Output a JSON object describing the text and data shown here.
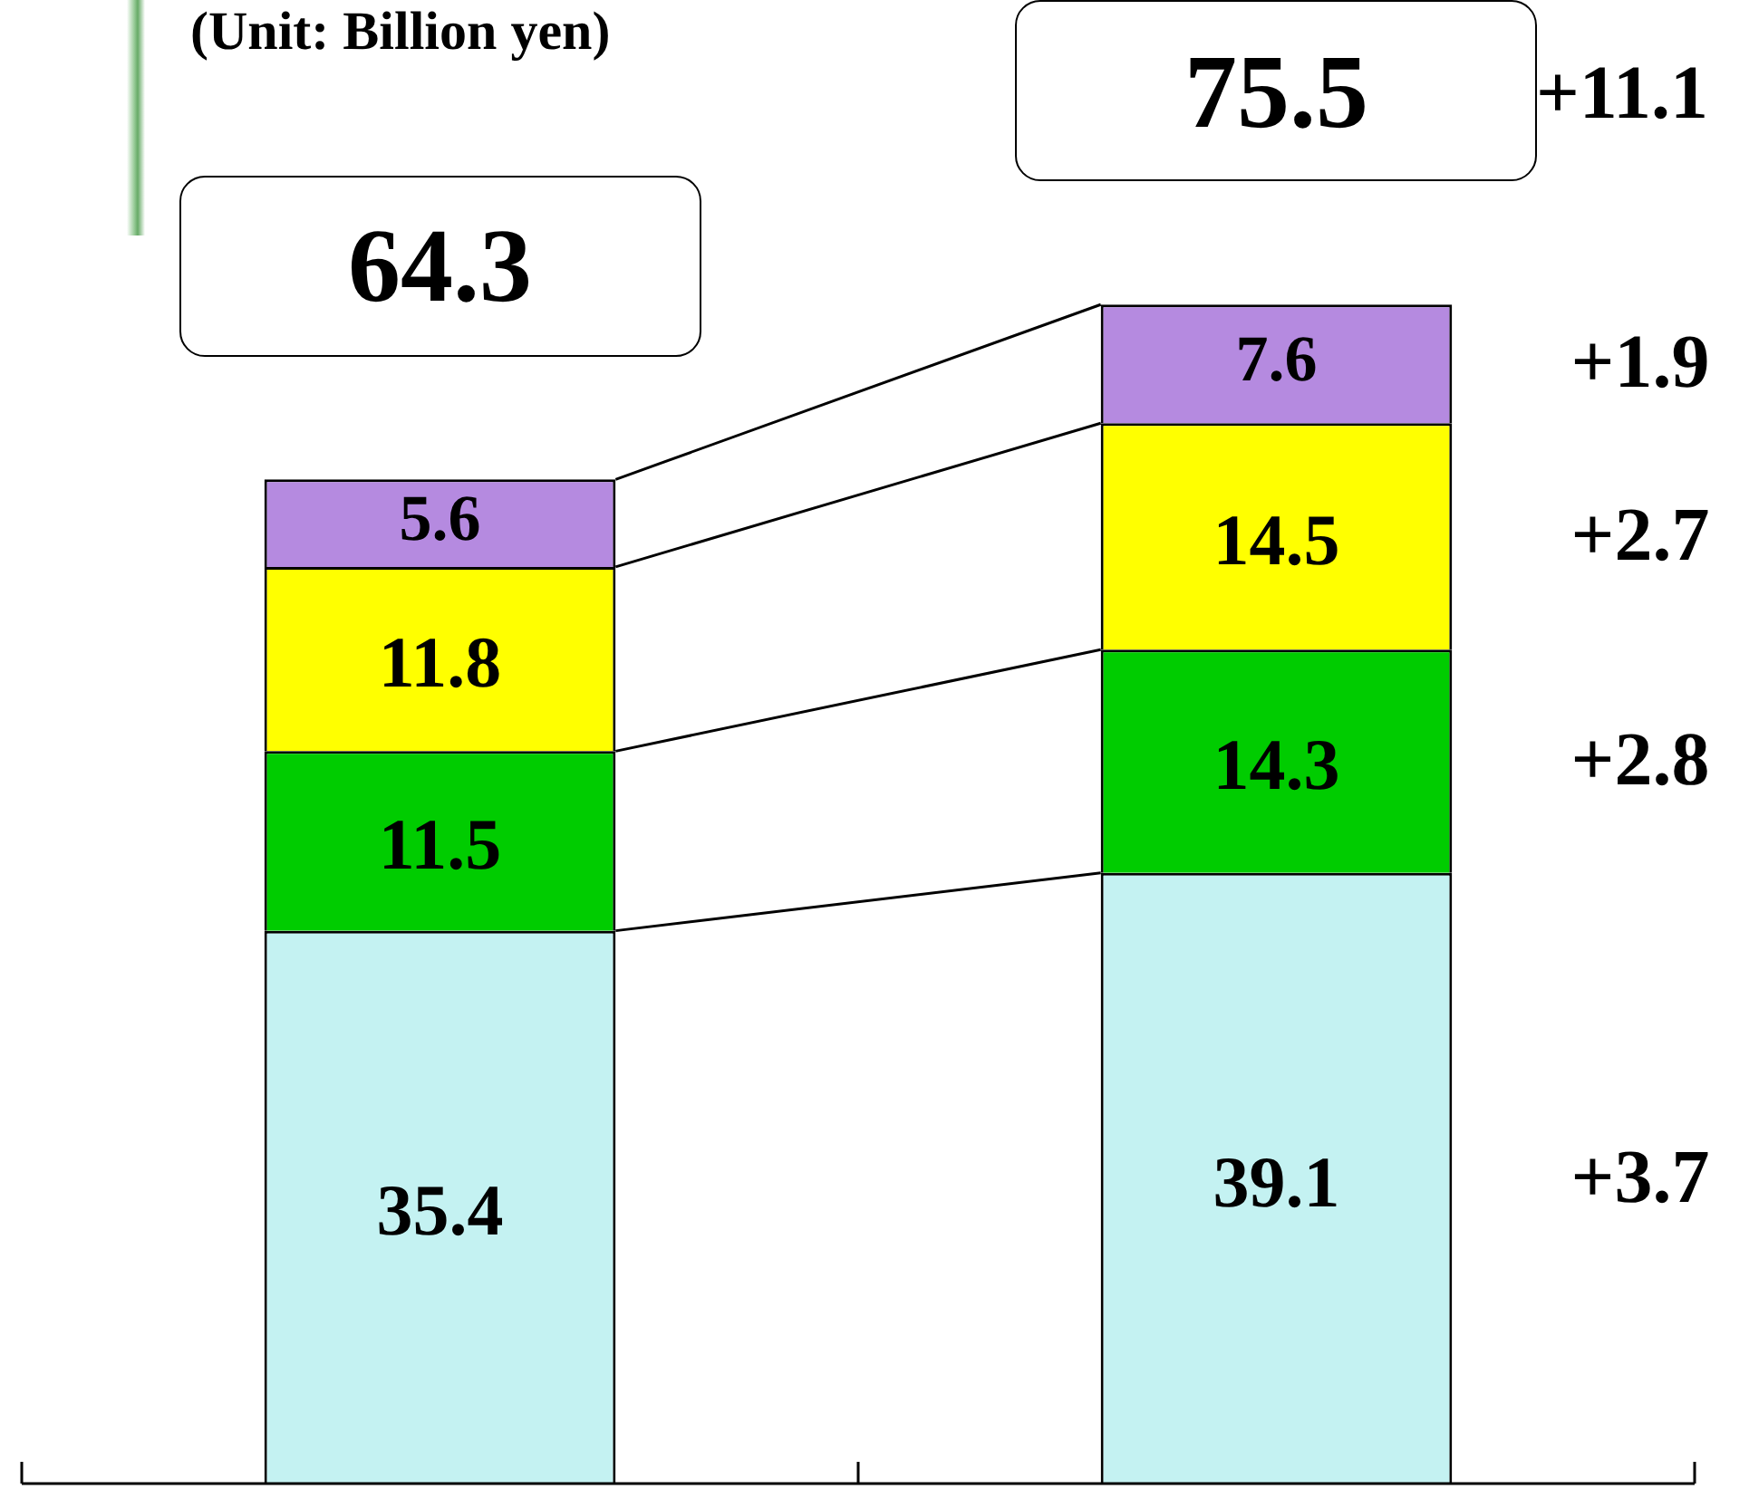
{
  "chart_data": {
    "type": "bar",
    "title": "(Unit: Billion yen)",
    "categories": [
      null,
      null
    ],
    "stacked": true,
    "ylim": [
      0,
      95
    ],
    "tick_labels": false,
    "legend": false,
    "data_labels": true,
    "series": [
      {
        "color": "#c4f2f2",
        "values": [
          35.4,
          39.1
        ]
      },
      {
        "color": "#00cc00",
        "values": [
          11.5,
          14.3
        ]
      },
      {
        "color": "#ffff00",
        "values": [
          11.8,
          14.5
        ]
      },
      {
        "color": "#b58ae0",
        "values": [
          5.6,
          7.6
        ]
      }
    ],
    "totals": [
      "64.3",
      "75.5"
    ],
    "annotations": [
      "+11.1",
      "+3.7",
      "+2.8",
      "+2.7",
      "+1.9"
    ]
  }
}
